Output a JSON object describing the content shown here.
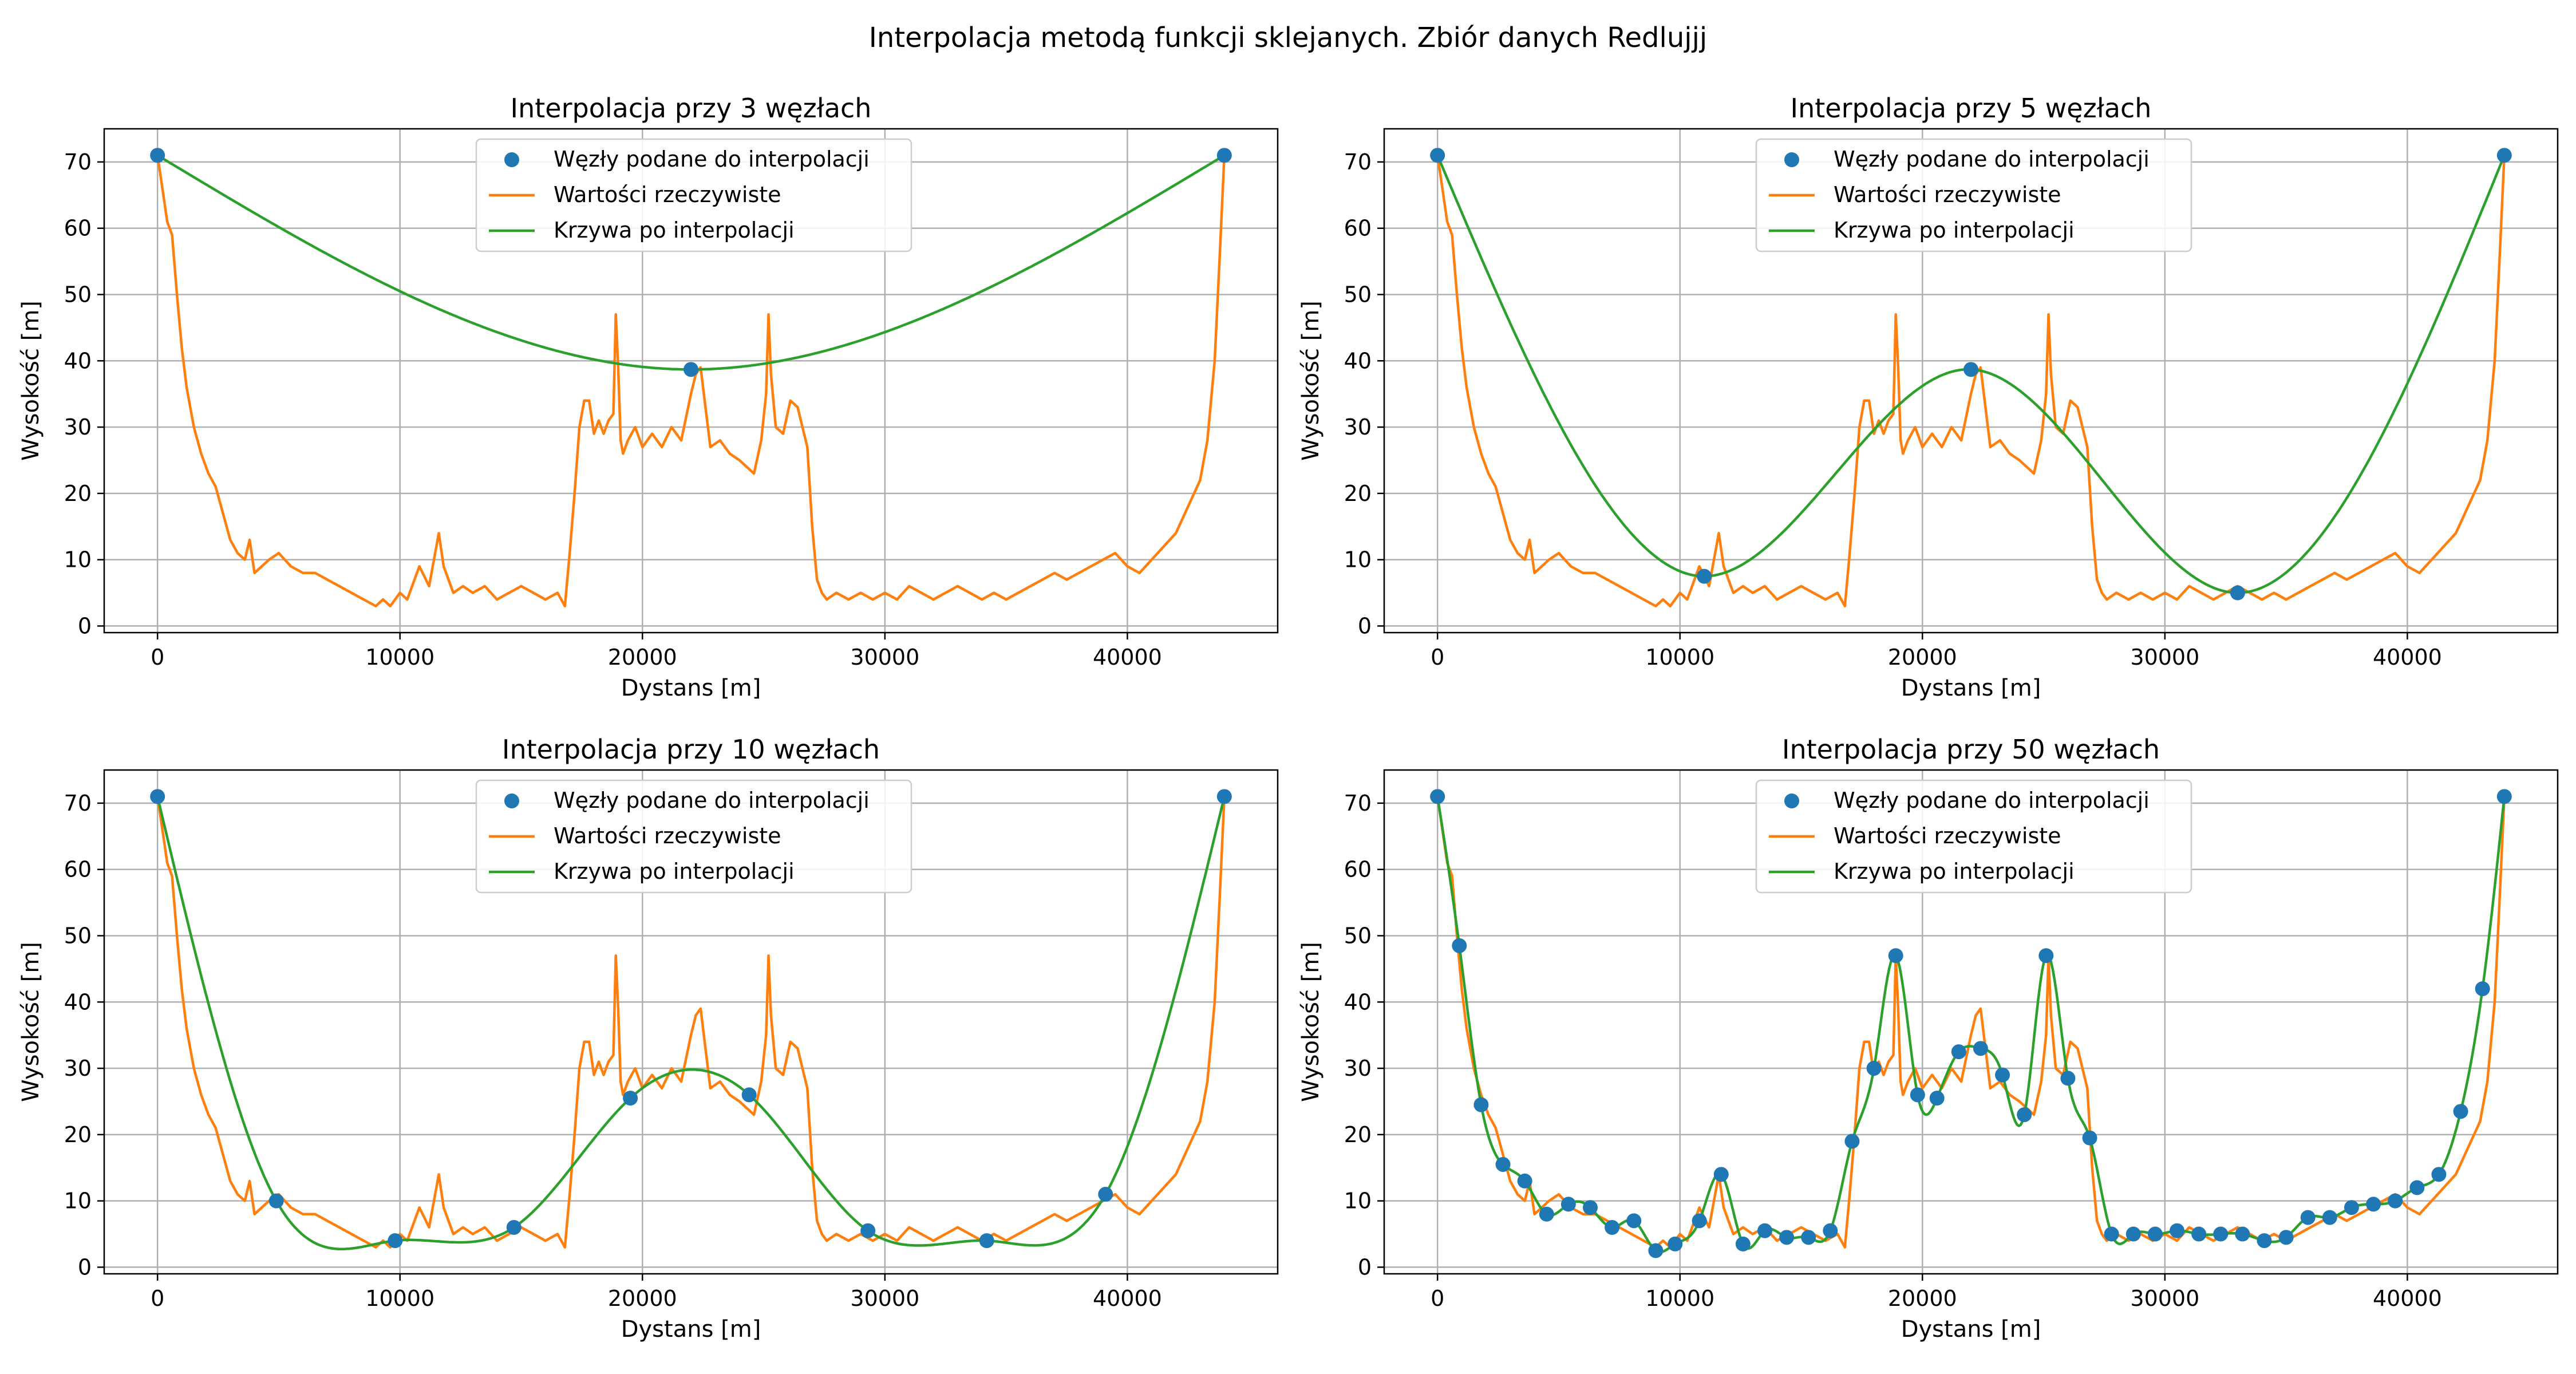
{
  "figure": {
    "suptitle": "Interpolacja metodą funkcji sklejanych. Zbiór danych Redlujjj"
  },
  "colors": {
    "nodes": "#1f77b4",
    "actual": "#ff7f0e",
    "interp": "#2ca02c",
    "grid": "#b0b0b0"
  },
  "legend_labels": {
    "nodes": "Węzły podane do interpolacji",
    "actual": "Wartości rzeczywiste",
    "interp": "Krzywa po interpolacji"
  },
  "actual_profile": {
    "x": [
      0,
      200,
      400,
      600,
      800,
      1000,
      1200,
      1500,
      1800,
      2100,
      2400,
      2700,
      3000,
      3300,
      3600,
      3800,
      4000,
      4300,
      4600,
      5000,
      5500,
      6000,
      6500,
      7000,
      7500,
      8000,
      8500,
      9000,
      9300,
      9600,
      10000,
      10300,
      10500,
      10800,
      11200,
      11500,
      11600,
      11800,
      12200,
      12600,
      13000,
      13500,
      14000,
      14500,
      15000,
      15500,
      16000,
      16500,
      16800,
      17000,
      17200,
      17400,
      17600,
      17800,
      18000,
      18200,
      18400,
      18600,
      18800,
      18900,
      19000,
      19100,
      19200,
      19400,
      19700,
      20000,
      20400,
      20800,
      21200,
      21600,
      22000,
      22200,
      22400,
      22600,
      22800,
      23200,
      23600,
      24000,
      24300,
      24600,
      24900,
      25100,
      25200,
      25300,
      25500,
      25800,
      26100,
      26400,
      26600,
      26800,
      27000,
      27200,
      27400,
      27600,
      28000,
      28500,
      29000,
      29500,
      30000,
      30500,
      31000,
      31500,
      32000,
      32500,
      33000,
      33500,
      34000,
      34500,
      35000,
      35500,
      36000,
      36500,
      37000,
      37500,
      38000,
      38500,
      39000,
      39500,
      40000,
      40500,
      41000,
      41500,
      42000,
      42500,
      43000,
      43300,
      43600,
      43800,
      44000
    ],
    "y": [
      71,
      66,
      61,
      59,
      50,
      42,
      36,
      30,
      26,
      23,
      21,
      17,
      13,
      11,
      10,
      13,
      8,
      9,
      10,
      11,
      9,
      8,
      8,
      7,
      6,
      5,
      4,
      3,
      4,
      3,
      5,
      4,
      6,
      9,
      6,
      12,
      14,
      9,
      5,
      6,
      5,
      6,
      4,
      5,
      6,
      5,
      4,
      5,
      3,
      11,
      20,
      30,
      34,
      34,
      29,
      31,
      29,
      31,
      32,
      47,
      39,
      28,
      26,
      28,
      30,
      27,
      29,
      27,
      30,
      28,
      35,
      38,
      39,
      33,
      27,
      28,
      26,
      25,
      24,
      23,
      28,
      35,
      47,
      38,
      30,
      29,
      34,
      33,
      30,
      27,
      15,
      7,
      5,
      4,
      5,
      4,
      5,
      4,
      5,
      4,
      6,
      5,
      4,
      5,
      6,
      5,
      4,
      5,
      4,
      5,
      6,
      7,
      8,
      7,
      8,
      9,
      10,
      11,
      9,
      8,
      10,
      12,
      14,
      18,
      22,
      28,
      40,
      55,
      71
    ]
  },
  "charts": [
    {
      "title": "Interpolacja przy 3 węzłach",
      "xlabel": "Dystans [m]",
      "ylabel": "Wysokość [m]",
      "type": "line",
      "xlim": [
        -2200,
        46200
      ],
      "ylim": [
        -1,
        75
      ],
      "xticks": [
        0,
        10000,
        20000,
        30000,
        40000
      ],
      "yticks": [
        0,
        10,
        20,
        30,
        40,
        50,
        60,
        70
      ],
      "legend": "top-center",
      "grid": true,
      "nodes": {
        "x": [
          0,
          22000,
          44000
        ],
        "y": [
          71,
          38.7,
          71
        ]
      }
    },
    {
      "title": "Interpolacja przy 5 węzłach",
      "xlabel": "Dystans [m]",
      "ylabel": "Wysokość [m]",
      "type": "line",
      "xlim": [
        -2200,
        46200
      ],
      "ylim": [
        -1,
        75
      ],
      "xticks": [
        0,
        10000,
        20000,
        30000,
        40000
      ],
      "yticks": [
        0,
        10,
        20,
        30,
        40,
        50,
        60,
        70
      ],
      "legend": "top-center",
      "grid": true,
      "nodes": {
        "x": [
          0,
          11000,
          22000,
          33000,
          44000
        ],
        "y": [
          71,
          7.5,
          38.7,
          5,
          71
        ]
      }
    },
    {
      "title": "Interpolacja przy 10 węzłach",
      "xlabel": "Dystans [m]",
      "ylabel": "Wysokość [m]",
      "type": "line",
      "xlim": [
        -2200,
        46200
      ],
      "ylim": [
        -1,
        75
      ],
      "xticks": [
        0,
        10000,
        20000,
        30000,
        40000
      ],
      "yticks": [
        0,
        10,
        20,
        30,
        40,
        50,
        60,
        70
      ],
      "legend": "top-center",
      "grid": true,
      "nodes": {
        "x": [
          0,
          4900,
          9800,
          14700,
          19500,
          24400,
          29300,
          34200,
          39100,
          44000
        ],
        "y": [
          71,
          10,
          4,
          6,
          25.5,
          26,
          5.5,
          4,
          11,
          71
        ]
      }
    },
    {
      "title": "Interpolacja przy 50 węzłach",
      "xlabel": "Dystans [m]",
      "ylabel": "Wysokość [m]",
      "type": "line",
      "xlim": [
        -2200,
        46200
      ],
      "ylim": [
        -1,
        75
      ],
      "xticks": [
        0,
        10000,
        20000,
        30000,
        40000
      ],
      "yticks": [
        0,
        10,
        20,
        30,
        40,
        50,
        60,
        70
      ],
      "legend": "top-center",
      "grid": true,
      "nodes": {
        "x": [
          0,
          900,
          1800,
          2700,
          3600,
          4500,
          5400,
          6300,
          7200,
          8100,
          9000,
          9800,
          10800,
          11700,
          12600,
          13500,
          14400,
          15300,
          16200,
          17100,
          18000,
          18900,
          19800,
          20600,
          21500,
          22400,
          23300,
          24200,
          25100,
          26000,
          26900,
          27800,
          28700,
          29600,
          30500,
          31400,
          32300,
          33200,
          34100,
          35000,
          35900,
          36800,
          37700,
          38600,
          39500,
          40400,
          41300,
          42200,
          43100,
          44000
        ],
        "y": [
          71,
          48.5,
          24.5,
          15.5,
          13,
          8,
          9.5,
          9,
          6,
          7,
          2.5,
          3.5,
          7,
          14,
          3.5,
          5.5,
          4.5,
          4.5,
          5.5,
          19,
          30,
          47,
          26,
          25.5,
          32.5,
          33,
          29,
          23,
          47,
          28.5,
          19.5,
          5,
          5,
          5,
          5.5,
          5,
          5,
          5,
          4,
          4.5,
          7.5,
          7.5,
          9,
          9.5,
          10,
          12,
          14,
          23.5,
          42,
          71
        ]
      }
    }
  ]
}
